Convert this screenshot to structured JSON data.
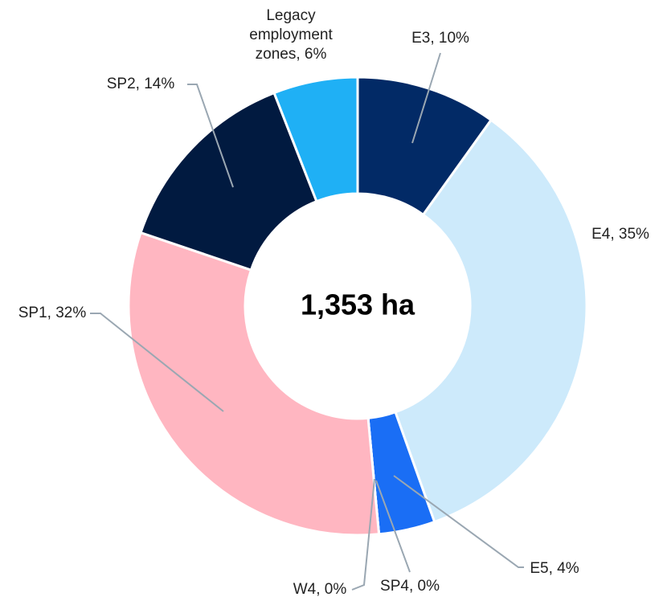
{
  "chart_data": {
    "type": "donut",
    "center_label": "1,353 ha",
    "labels": [
      "E3, 10%",
      "E4, 35%",
      "E5, 4%",
      "SP4, 0%",
      "W4, 0%",
      "SP1, 32%",
      "SP2, 14%",
      "Legacy employment zones, 6%"
    ],
    "values": [
      10,
      35,
      4,
      0,
      0,
      32,
      14,
      6
    ],
    "colors": [
      "#022a66",
      "#cdeafb",
      "#1a6ef5",
      "#0f4fb8",
      "#ff9aa8",
      "#ffb6c1",
      "#011a40",
      "#1fb0f5"
    ]
  }
}
